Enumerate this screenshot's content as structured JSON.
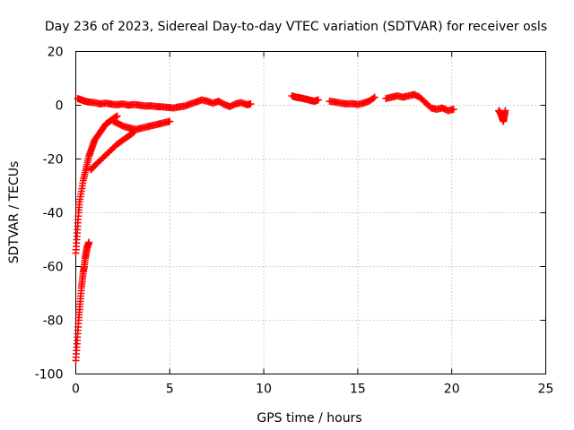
{
  "chart_data": {
    "type": "scatter",
    "title": "Day 236 of 2023, Sidereal Day-to-day VTEC variation (SDTVAR) for receiver osls",
    "xlabel": "GPS time / hours",
    "ylabel": "SDTVAR / TECUs",
    "xlim": [
      0,
      25
    ],
    "ylim": [
      -100,
      20
    ],
    "xticks": [
      0,
      5,
      10,
      15,
      20,
      25
    ],
    "yticks": [
      -100,
      -80,
      -60,
      -40,
      -20,
      0,
      20
    ],
    "grid": true,
    "marker": "+",
    "series": [
      {
        "name": "SDTVAR",
        "color": "#ff0000",
        "segments": [
          {
            "name": "steep-drop",
            "points": [
              [
                0.0,
                -95
              ],
              [
                0.05,
                -90
              ],
              [
                0.1,
                -85
              ],
              [
                0.15,
                -80
              ],
              [
                0.2,
                -76
              ],
              [
                0.25,
                -72
              ],
              [
                0.3,
                -68
              ],
              [
                0.35,
                -65
              ],
              [
                0.4,
                -62
              ],
              [
                0.45,
                -60
              ],
              [
                0.5,
                -57
              ],
              [
                0.55,
                -55
              ],
              [
                0.6,
                -53
              ],
              [
                0.65,
                -52
              ],
              [
                0.7,
                -51
              ]
            ]
          },
          {
            "name": "recovery-curve",
            "points": [
              [
                0.0,
                -55
              ],
              [
                0.05,
                -50
              ],
              [
                0.1,
                -45
              ],
              [
                0.15,
                -40
              ],
              [
                0.2,
                -36
              ],
              [
                0.3,
                -32
              ],
              [
                0.4,
                -28
              ],
              [
                0.5,
                -25
              ],
              [
                0.6,
                -22
              ],
              [
                0.7,
                -19
              ],
              [
                0.8,
                -17
              ],
              [
                0.9,
                -15
              ],
              [
                1.0,
                -13
              ],
              [
                1.2,
                -11
              ],
              [
                1.4,
                -9
              ],
              [
                1.6,
                -7
              ],
              [
                1.8,
                -6
              ],
              [
                2.0,
                -5
              ],
              [
                2.2,
                -4
              ]
            ]
          },
          {
            "name": "rising-branch",
            "points": [
              [
                0.8,
                -24
              ],
              [
                1.0,
                -22.5
              ],
              [
                1.3,
                -20.5
              ],
              [
                1.6,
                -18.5
              ],
              [
                1.9,
                -16.5
              ],
              [
                2.2,
                -14.5
              ],
              [
                2.5,
                -13
              ],
              [
                2.8,
                -11.5
              ],
              [
                3.1,
                -10
              ]
            ]
          },
          {
            "name": "mid-branch",
            "points": [
              [
                2.0,
                -6
              ],
              [
                2.3,
                -7
              ],
              [
                2.6,
                -8
              ],
              [
                2.9,
                -8.5
              ],
              [
                3.2,
                -9
              ],
              [
                3.5,
                -8.5
              ],
              [
                3.8,
                -8
              ],
              [
                4.1,
                -7.5
              ],
              [
                4.4,
                -7
              ],
              [
                4.7,
                -6.5
              ],
              [
                5.0,
                -6
              ]
            ]
          },
          {
            "name": "band-near-zero",
            "points": [
              [
                0.1,
                2.5
              ],
              [
                0.3,
                2
              ],
              [
                0.5,
                1.5
              ],
              [
                0.7,
                1.2
              ],
              [
                1.0,
                1
              ],
              [
                1.3,
                0.5
              ],
              [
                1.6,
                0.8
              ],
              [
                1.9,
                0.4
              ],
              [
                2.2,
                0.2
              ],
              [
                2.5,
                0.5
              ],
              [
                2.8,
                0
              ],
              [
                3.1,
                0.3
              ],
              [
                3.4,
                0
              ],
              [
                3.7,
                -0.3
              ],
              [
                4.0,
                -0.2
              ],
              [
                4.3,
                -0.5
              ],
              [
                4.6,
                -0.6
              ],
              [
                4.9,
                -0.8
              ],
              [
                5.2,
                -1
              ],
              [
                5.5,
                -0.6
              ],
              [
                5.8,
                -0.3
              ],
              [
                6.1,
                0.5
              ],
              [
                6.4,
                1.2
              ],
              [
                6.7,
                2
              ],
              [
                7.0,
                1.5
              ],
              [
                7.3,
                0.8
              ],
              [
                7.6,
                1.5
              ],
              [
                7.9,
                0.3
              ],
              [
                8.2,
                -0.5
              ],
              [
                8.5,
                0.5
              ],
              [
                8.8,
                1
              ],
              [
                9.1,
                0.2
              ],
              [
                9.3,
                0.5
              ]
            ]
          },
          {
            "name": "band-12h",
            "points": [
              [
                11.5,
                3.5
              ],
              [
                11.7,
                3
              ],
              [
                11.9,
                2.8
              ],
              [
                12.1,
                2.5
              ],
              [
                12.3,
                2.2
              ],
              [
                12.5,
                1.8
              ],
              [
                12.7,
                1.5
              ],
              [
                12.9,
                2
              ]
            ]
          },
          {
            "name": "band-15h",
            "points": [
              [
                13.5,
                1.5
              ],
              [
                13.8,
                1.2
              ],
              [
                14.1,
                0.8
              ],
              [
                14.4,
                0.5
              ],
              [
                14.7,
                0.6
              ],
              [
                15.0,
                0.3
              ],
              [
                15.3,
                0.8
              ],
              [
                15.6,
                1.5
              ],
              [
                15.9,
                3
              ]
            ]
          },
          {
            "name": "band-18h",
            "points": [
              [
                16.5,
                2.5
              ],
              [
                16.8,
                3
              ],
              [
                17.1,
                3.5
              ],
              [
                17.4,
                3
              ],
              [
                17.7,
                3.5
              ],
              [
                18.0,
                4
              ],
              [
                18.3,
                3
              ],
              [
                18.6,
                1
              ],
              [
                18.9,
                -1
              ],
              [
                19.2,
                -1.5
              ],
              [
                19.5,
                -1
              ],
              [
                19.8,
                -2
              ],
              [
                20.1,
                -1.5
              ]
            ]
          },
          {
            "name": "band-23h",
            "points": [
              [
                22.5,
                -2
              ],
              [
                22.6,
                -3
              ],
              [
                22.65,
                -4
              ],
              [
                22.7,
                -5
              ],
              [
                22.75,
                -6
              ],
              [
                22.8,
                -4
              ],
              [
                22.85,
                -2
              ]
            ]
          }
        ]
      }
    ]
  }
}
